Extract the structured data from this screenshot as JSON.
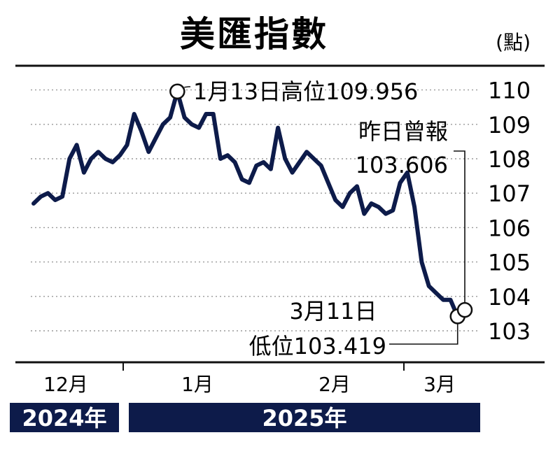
{
  "chart_data": {
    "type": "line",
    "title": "美匯指數",
    "unit": "(點)",
    "ylim": [
      102.6,
      110.6
    ],
    "y_ticks": [
      "110",
      "109",
      "108",
      "107",
      "106",
      "105",
      "104",
      "103"
    ],
    "y_tick_values": [
      110,
      109,
      108,
      107,
      106,
      105,
      104,
      103
    ],
    "grid": "dotted",
    "months": [
      "12月",
      "1月",
      "2月",
      "3月"
    ],
    "years": [
      "2024年",
      "2025年"
    ],
    "series": [
      {
        "values": [
          106.7,
          106.9,
          107.0,
          106.8,
          106.9,
          108.0,
          108.4,
          107.6,
          108.0,
          108.2,
          108.0,
          107.9,
          108.1,
          108.4,
          109.3,
          108.8,
          108.2,
          108.6,
          109.0,
          109.2,
          109.956,
          109.2,
          109.0,
          108.9,
          109.3,
          109.3,
          108.0,
          108.1,
          107.9,
          107.4,
          107.3,
          107.8,
          107.9,
          107.7,
          108.9,
          108.0,
          107.6,
          107.9,
          108.2,
          108.0,
          107.8,
          107.3,
          106.8,
          106.6,
          107.0,
          107.2,
          106.4,
          106.7,
          106.6,
          106.4,
          106.5,
          107.3,
          107.6,
          106.6,
          105.0,
          104.3,
          104.1,
          103.9,
          103.9,
          103.419,
          103.606
        ]
      }
    ],
    "annotations": {
      "high": "1月13日高位109.956",
      "yesterday_label": "昨日曾報",
      "yesterday_value": "103.606",
      "low_date": "3月11日",
      "low_value": "低位103.419"
    },
    "colors": {
      "line": "#0d1b4a",
      "band": "#0d1b4a",
      "grid": "#9a9a9a"
    }
  }
}
